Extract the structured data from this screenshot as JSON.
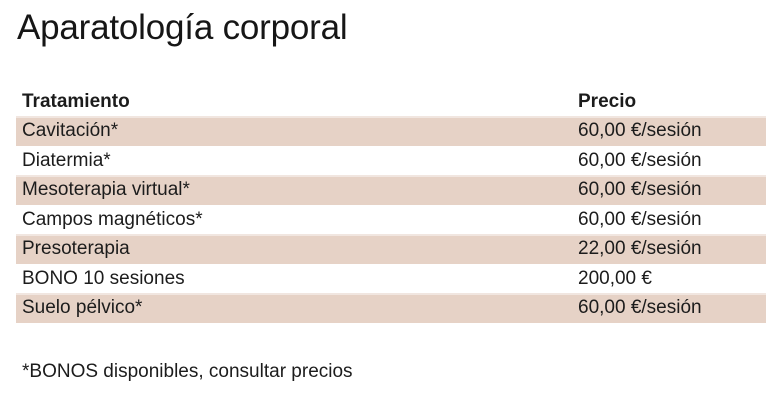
{
  "page": {
    "title": "Aparatología corporal",
    "footnote": "*BONOS disponibles, consultar precios"
  },
  "table": {
    "columns": [
      "Tratamiento",
      "Precio"
    ],
    "rows": [
      {
        "tratamiento": "Cavitación*",
        "precio": "60,00 €/sesión"
      },
      {
        "tratamiento": "Diatermia*",
        "precio": "60,00 €/sesión"
      },
      {
        "tratamiento": "Mesoterapia virtual*",
        "precio": "60,00 €/sesión"
      },
      {
        "tratamiento": "Campos magnéticos*",
        "precio": "60,00 €/sesión"
      },
      {
        "tratamiento": "Presoterapia",
        "precio": "22,00 €/sesión"
      },
      {
        "tratamiento": "BONO 10 sesiones",
        "precio": "200,00 €"
      },
      {
        "tratamiento": "Suelo pélvico*",
        "precio": "60,00 €/sesión"
      }
    ]
  },
  "colors": {
    "row_shade": "#e6d2c6",
    "text": "#1c1c1c",
    "background": "#ffffff"
  }
}
